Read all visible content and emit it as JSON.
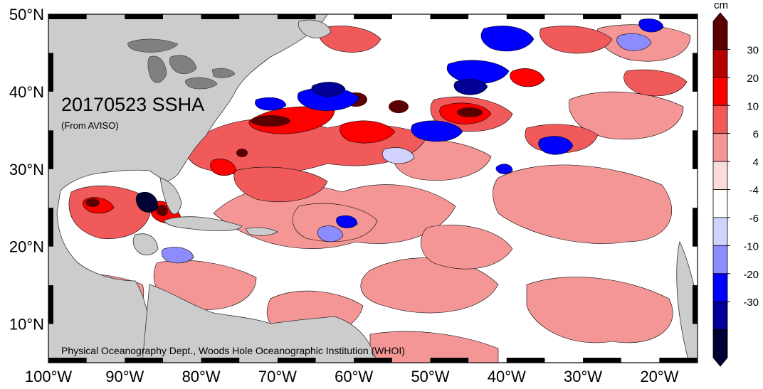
{
  "title": "20170523 SSHA",
  "subtitle": "(From AVISO)",
  "credit": "Physical Oceanography Dept., Woods Hole Oceanographic Institution (WHOI)",
  "lat_labels": [
    "50°N",
    "40°N",
    "30°N",
    "20°N",
    "10°N"
  ],
  "lon_labels": [
    "100°W",
    "90°W",
    "80°W",
    "70°W",
    "60°W",
    "50°W",
    "40°W",
    "30°W",
    "20°W"
  ],
  "colorbar": {
    "unit": "cm",
    "tick_labels": [
      "30",
      "20",
      "10",
      "6",
      "4",
      "-4",
      "-6",
      "-10",
      "-20",
      "-30"
    ],
    "colors": [
      "#5a0000",
      "#b40000",
      "#ff0000",
      "#f05a5a",
      "#f59696",
      "#fadcdc",
      "#ffffff",
      "#d2d2ff",
      "#8c8cff",
      "#0000ff",
      "#000096",
      "#000032"
    ]
  },
  "colors": {
    "land": "#cccccc",
    "lakes": "#808080",
    "ocean_neutral": "#ffffff"
  }
}
